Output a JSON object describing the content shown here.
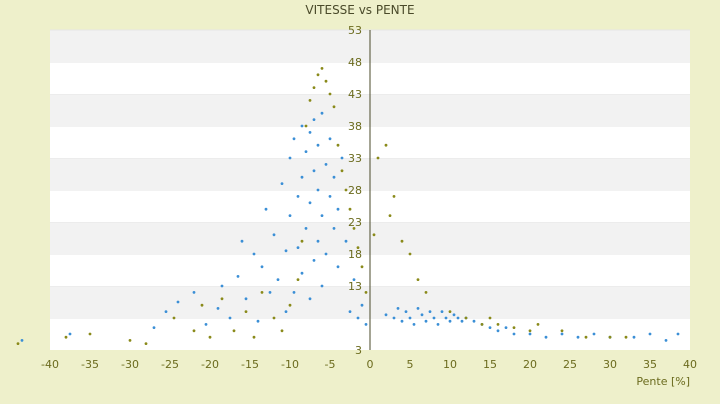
{
  "chart_data": {
    "type": "scatter",
    "title": "VITESSE vs PENTE",
    "xlabel": "Pente [%]",
    "ylabel": "",
    "xlim": [
      -40,
      40
    ],
    "ylim": [
      3,
      53
    ],
    "x_ticks": [
      -40,
      -35,
      -30,
      -25,
      -20,
      -15,
      -10,
      -5,
      0,
      5,
      10,
      15,
      20,
      25,
      30,
      35,
      40
    ],
    "y_ticks": [
      3,
      8,
      13,
      18,
      23,
      28,
      33,
      38,
      43,
      48,
      53
    ],
    "y_ticks_labeled": [
      3,
      13,
      18,
      23,
      28,
      33,
      38,
      43,
      48,
      53
    ],
    "grid": true,
    "legend": "none",
    "colors": {
      "background": "#eef0cb",
      "plot": "#ffffff",
      "band": "#f2f2f2",
      "text": "#6b6b1e",
      "series_blue": "#3b8fd6",
      "series_olive": "#8a8a1a"
    },
    "series": [
      {
        "marker": "dot",
        "color": "#3b8fd6",
        "points": [
          [
            -43.5,
            4.5
          ],
          [
            -37.5,
            5.5
          ],
          [
            -27,
            6.5
          ],
          [
            -25.5,
            9
          ],
          [
            -24,
            10.5
          ],
          [
            -22,
            12
          ],
          [
            -20.5,
            7
          ],
          [
            -19,
            9.5
          ],
          [
            -18.5,
            13
          ],
          [
            -17.5,
            8
          ],
          [
            -16.5,
            14.5
          ],
          [
            -16,
            20
          ],
          [
            -15.5,
            11
          ],
          [
            -14.5,
            18
          ],
          [
            -14,
            7.5
          ],
          [
            -13.5,
            16
          ],
          [
            -13,
            25
          ],
          [
            -12.5,
            12
          ],
          [
            -12,
            21
          ],
          [
            -11.5,
            14
          ],
          [
            -11,
            29
          ],
          [
            -10.5,
            9
          ],
          [
            -10.5,
            18.5
          ],
          [
            -10,
            24
          ],
          [
            -10,
            33
          ],
          [
            -9.5,
            12
          ],
          [
            -9.5,
            36
          ],
          [
            -9,
            19
          ],
          [
            -9,
            27
          ],
          [
            -8.5,
            15
          ],
          [
            -8.5,
            30
          ],
          [
            -8.5,
            38
          ],
          [
            -8,
            22
          ],
          [
            -8,
            34
          ],
          [
            -7.5,
            11
          ],
          [
            -7.5,
            26
          ],
          [
            -7.5,
            37
          ],
          [
            -7,
            17
          ],
          [
            -7,
            31
          ],
          [
            -7,
            39
          ],
          [
            -6.5,
            20
          ],
          [
            -6.5,
            28
          ],
          [
            -6.5,
            35
          ],
          [
            -6,
            13
          ],
          [
            -6,
            24
          ],
          [
            -6,
            40
          ],
          [
            -5.5,
            32
          ],
          [
            -5.5,
            18
          ],
          [
            -5,
            27
          ],
          [
            -5,
            36
          ],
          [
            -4.5,
            22
          ],
          [
            -4.5,
            30
          ],
          [
            -4,
            16
          ],
          [
            -4,
            25
          ],
          [
            -3.5,
            33
          ],
          [
            -3,
            20
          ],
          [
            -2.5,
            9
          ],
          [
            -2,
            14
          ],
          [
            -1.5,
            8
          ],
          [
            -1,
            10
          ],
          [
            -0.5,
            7
          ],
          [
            2,
            8.5
          ],
          [
            3,
            8
          ],
          [
            3.5,
            9.5
          ],
          [
            4,
            7.5
          ],
          [
            4.5,
            9
          ],
          [
            5,
            8
          ],
          [
            5.5,
            7
          ],
          [
            6,
            9.5
          ],
          [
            6.5,
            8.5
          ],
          [
            7,
            7.5
          ],
          [
            7.5,
            9
          ],
          [
            8,
            8
          ],
          [
            8.5,
            7
          ],
          [
            9,
            9
          ],
          [
            9.5,
            8
          ],
          [
            10,
            7.5
          ],
          [
            10.5,
            8.5
          ],
          [
            11,
            8
          ],
          [
            11.5,
            7.5
          ],
          [
            12,
            8
          ],
          [
            13,
            7.5
          ],
          [
            14,
            7
          ],
          [
            15,
            6.5
          ],
          [
            16,
            6
          ],
          [
            17,
            6.5
          ],
          [
            18,
            5.5
          ],
          [
            20,
            5.5
          ],
          [
            22,
            5
          ],
          [
            24,
            5.5
          ],
          [
            26,
            5
          ],
          [
            28,
            5.5
          ],
          [
            30,
            5
          ],
          [
            33,
            5
          ],
          [
            35,
            5.5
          ],
          [
            37,
            4.5
          ],
          [
            38.5,
            5.5
          ]
        ]
      },
      {
        "marker": "dot",
        "color": "#8a8a1a",
        "points": [
          [
            -44,
            4
          ],
          [
            -38,
            5
          ],
          [
            -35,
            5.5
          ],
          [
            -30,
            4.5
          ],
          [
            -28,
            4
          ],
          [
            -24.5,
            8
          ],
          [
            -22,
            6
          ],
          [
            -21,
            10
          ],
          [
            -20,
            5
          ],
          [
            -18.5,
            11
          ],
          [
            -17,
            6
          ],
          [
            -15.5,
            9
          ],
          [
            -14.5,
            5
          ],
          [
            -13.5,
            12
          ],
          [
            -12,
            8
          ],
          [
            -11,
            6
          ],
          [
            -10,
            10
          ],
          [
            -9,
            14
          ],
          [
            -8.5,
            20
          ],
          [
            -8,
            38
          ],
          [
            -7.5,
            42
          ],
          [
            -7,
            44
          ],
          [
            -6.5,
            46
          ],
          [
            -6,
            47
          ],
          [
            -5.5,
            45
          ],
          [
            -5,
            43
          ],
          [
            -4.5,
            41
          ],
          [
            -4,
            35
          ],
          [
            -3.5,
            31
          ],
          [
            -3,
            28
          ],
          [
            -2.5,
            25
          ],
          [
            -2,
            22
          ],
          [
            -1.5,
            19
          ],
          [
            -1,
            16
          ],
          [
            -0.5,
            12
          ],
          [
            0.5,
            21
          ],
          [
            1,
            33
          ],
          [
            2,
            35
          ],
          [
            2.5,
            24
          ],
          [
            3,
            27
          ],
          [
            4,
            20
          ],
          [
            5,
            18
          ],
          [
            6,
            14
          ],
          [
            7,
            12
          ],
          [
            10,
            9
          ],
          [
            12,
            8
          ],
          [
            14,
            7
          ],
          [
            15,
            8
          ],
          [
            16,
            7
          ],
          [
            18,
            6.5
          ],
          [
            20,
            6
          ],
          [
            21,
            7
          ],
          [
            24,
            6
          ],
          [
            27,
            5
          ],
          [
            30,
            5
          ],
          [
            32,
            5
          ]
        ]
      }
    ]
  }
}
